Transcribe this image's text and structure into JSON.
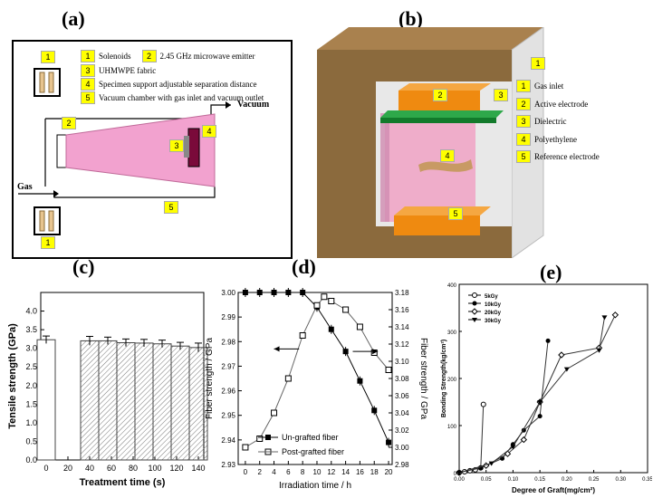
{
  "panel_a": {
    "label": "(a)",
    "legend": [
      {
        "num": "1",
        "text": "Solenoids"
      },
      {
        "num": "2",
        "text": "2.45 GHz microwave emitter"
      },
      {
        "num": "3",
        "text": "UHMWPE fabric"
      },
      {
        "num": "4",
        "text": "Specimen support adjustable separation distance"
      },
      {
        "num": "5",
        "text": "Vacuum chamber with gas inlet and vacuum outlet"
      }
    ],
    "vacuum_label": "Vacuum",
    "gas_label": "Gas",
    "tags": {
      "t1a": "1",
      "t1b": "1",
      "t2": "2",
      "t3": "3",
      "t4": "4",
      "t5": "5"
    }
  },
  "panel_b": {
    "label": "(b)",
    "legend": [
      {
        "num": "1",
        "text": "Gas inlet"
      },
      {
        "num": "2",
        "text": "Active electrode"
      },
      {
        "num": "3",
        "text": "Dielectric"
      },
      {
        "num": "4",
        "text": "Polyethylene"
      },
      {
        "num": "5",
        "text": "Reference electrode"
      }
    ],
    "tags": {
      "t1": "1",
      "t2": "2",
      "t3": "3",
      "t4": "4",
      "t5": "5"
    }
  },
  "chart_data": [
    {
      "id": "c",
      "label": "(c)",
      "type": "bar",
      "ylabel": "Tensile strength (GPa)",
      "xlabel": "Treatment time (s)",
      "ylim": [
        0,
        4.5
      ],
      "yticks": [
        "0.0",
        "0.5",
        "1.0",
        "1.5",
        "2.0",
        "2.5",
        "3.0",
        "3.5",
        "4.0"
      ],
      "xticks": [
        "0",
        "20",
        "40",
        "60",
        "80",
        "100",
        "120",
        "140"
      ],
      "x": [
        0,
        40,
        55,
        70,
        85,
        100,
        115,
        130
      ],
      "values": [
        3.23,
        3.2,
        3.2,
        3.15,
        3.14,
        3.12,
        3.06,
        3.02
      ],
      "errors": [
        0.1,
        0.12,
        0.1,
        0.1,
        0.1,
        0.1,
        0.1,
        0.12
      ]
    },
    {
      "id": "d",
      "label": "(d)",
      "type": "line",
      "xlabel": "Irradiation time / h",
      "ylabel": "Fiber strength / GPa",
      "ylabel_right": "Fiber strength / GPa",
      "xlim": [
        -1,
        20.5
      ],
      "ylim": [
        2.93,
        3.0
      ],
      "ylim_right": [
        2.98,
        3.18
      ],
      "xticks": [
        "0",
        "2",
        "4",
        "6",
        "8",
        "10",
        "12",
        "14",
        "16",
        "18",
        "20"
      ],
      "yticks": [
        "2.93",
        "2.94",
        "2.95",
        "2.96",
        "2.97",
        "2.98",
        "2.99",
        "3.00"
      ],
      "yticks_right": [
        "2.98",
        "3.00",
        "3.02",
        "3.04",
        "3.06",
        "3.08",
        "3.10",
        "3.12",
        "3.14",
        "3.16",
        "3.18"
      ],
      "series": [
        {
          "name": "Un-grafted fiber",
          "axis": "left",
          "x": [
            2,
            4,
            6,
            8,
            10,
            12,
            14,
            16,
            18,
            20
          ],
          "y": [
            3.0,
            3.0,
            3.0,
            3.0,
            2.994,
            2.985,
            2.976,
            2.964,
            2.952,
            2.939
          ],
          "x0": 0,
          "y0": 3.0
        },
        {
          "name": "Post-grafted fiber",
          "axis": "right",
          "x": [
            0,
            2,
            4,
            6,
            8,
            10,
            11,
            12,
            14,
            16,
            18,
            20
          ],
          "y": [
            3.0,
            3.01,
            3.04,
            3.08,
            3.13,
            3.165,
            3.175,
            3.17,
            3.16,
            3.14,
            3.11,
            3.09
          ]
        }
      ]
    },
    {
      "id": "e",
      "label": "(e)",
      "type": "line",
      "xlabel": "Degree of Graft(mg/cm²)",
      "ylabel": "Bonding Strength(kg/cm²)",
      "xlim": [
        0,
        0.35
      ],
      "ylim": [
        0,
        400
      ],
      "xticks": [
        "0.00",
        "0.05",
        "0.10",
        "0.15",
        "0.20",
        "0.25",
        "0.30",
        "0.35"
      ],
      "yticks": [
        "0",
        "100",
        "200",
        "300",
        "400"
      ],
      "series": [
        {
          "name": "5kGy",
          "x": [
            0,
            0.01,
            0.02,
            0.03,
            0.04,
            0.045
          ],
          "y": [
            0,
            2,
            4,
            6,
            10,
            145
          ]
        },
        {
          "name": "10kGy",
          "x": [
            0,
            0.04,
            0.08,
            0.1,
            0.12,
            0.15,
            0.165
          ],
          "y": [
            0,
            10,
            30,
            60,
            90,
            120,
            280
          ]
        },
        {
          "name": "20kGy",
          "x": [
            0,
            0.05,
            0.09,
            0.12,
            0.15,
            0.19,
            0.26,
            0.29
          ],
          "y": [
            0,
            15,
            40,
            70,
            150,
            250,
            265,
            335
          ]
        },
        {
          "name": "30kGy",
          "x": [
            0,
            0.06,
            0.1,
            0.15,
            0.2,
            0.26,
            0.27
          ],
          "y": [
            0,
            20,
            55,
            150,
            220,
            260,
            330
          ]
        }
      ]
    }
  ]
}
